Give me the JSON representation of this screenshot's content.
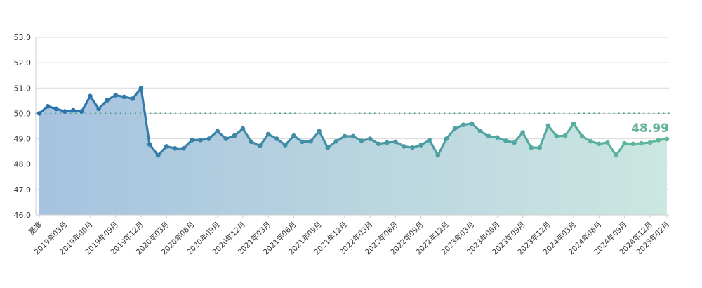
{
  "chart_data": {
    "type": "line",
    "title": "",
    "xlabel": "",
    "ylabel": "",
    "ylim": [
      46.0,
      53.0
    ],
    "y_ticks": [
      "46.0",
      "47.0",
      "48.0",
      "49.0",
      "50.0",
      "51.0",
      "52.0",
      "53.0"
    ],
    "reference_line": 50.0,
    "grid": "horizontal",
    "last_value_label": "48.99",
    "gradient_colors": [
      "#2a6fac",
      "#60b99d"
    ],
    "x": [
      "基准",
      "2019年01月",
      "2019年02月",
      "2019年03月",
      "2019年04月",
      "2019年05月",
      "2019年06月",
      "2019年07月",
      "2019年08月",
      "2019年09月",
      "2019年10月",
      "2019年11月",
      "2019年12月",
      "2020年01月",
      "2020年02月",
      "2020年03月",
      "2020年04月",
      "2020年05月",
      "2020年06月",
      "2020年07月",
      "2020年08月",
      "2020年09月",
      "2020年10月",
      "2020年11月",
      "2020年12月",
      "2021年01月",
      "2021年02月",
      "2021年03月",
      "2021年04月",
      "2021年05月",
      "2021年06月",
      "2021年07月",
      "2021年08月",
      "2021年09月",
      "2021年10月",
      "2021年11月",
      "2021年12月",
      "2022年01月",
      "2022年02月",
      "2022年03月",
      "2022年04月",
      "2022年05月",
      "2022年06月",
      "2022年07月",
      "2022年08月",
      "2022年09月",
      "2022年10月",
      "2022年11月",
      "2022年12月",
      "2023年01月",
      "2023年02月",
      "2023年03月",
      "2023年04月",
      "2023年05月",
      "2023年06月",
      "2023年07月",
      "2023年08月",
      "2023年09月",
      "2023年10月",
      "2023年11月",
      "2023年12月",
      "2024年01月",
      "2024年02月",
      "2024年03月",
      "2024年04月",
      "2024年05月",
      "2024年06月",
      "2024年07月",
      "2024年08月",
      "2024年09月",
      "2024年10月",
      "2024年11月",
      "2024年12月",
      "2025年01月",
      "2025年02月"
    ],
    "x_tick_labels": [
      "基准",
      "2019年03月",
      "2019年06月",
      "2019年09月",
      "2019年12月",
      "2020年03月",
      "2020年06月",
      "2020年09月",
      "2020年12月",
      "2021年03月",
      "2021年06月",
      "2021年09月",
      "2021年12月",
      "2022年03月",
      "2022年06月",
      "2022年09月",
      "2022年12月",
      "2023年03月",
      "2023年06月",
      "2023年09月",
      "2023年12月",
      "2024年03月",
      "2024年06月",
      "2024年09月",
      "2024年12月",
      "2025年02月"
    ],
    "series": [
      {
        "values": [
          50.0,
          50.28,
          50.18,
          50.08,
          50.12,
          50.08,
          50.68,
          50.18,
          50.52,
          50.72,
          50.65,
          50.58,
          51.0,
          48.78,
          48.35,
          48.7,
          48.62,
          48.62,
          48.95,
          48.95,
          49.0,
          49.3,
          49.0,
          49.12,
          49.4,
          48.88,
          48.72,
          49.18,
          49.0,
          48.75,
          49.12,
          48.88,
          48.9,
          49.3,
          48.65,
          48.9,
          49.1,
          49.1,
          48.92,
          49.0,
          48.8,
          48.85,
          48.88,
          48.7,
          48.65,
          48.75,
          48.95,
          48.35,
          49.0,
          49.4,
          49.55,
          49.6,
          49.3,
          49.1,
          49.05,
          48.92,
          48.85,
          49.25,
          48.65,
          48.65,
          49.52,
          49.1,
          49.12,
          49.6,
          49.1,
          48.9,
          48.8,
          48.85,
          48.35,
          48.82,
          48.8,
          48.82,
          48.85,
          48.95,
          48.99
        ]
      }
    ]
  }
}
